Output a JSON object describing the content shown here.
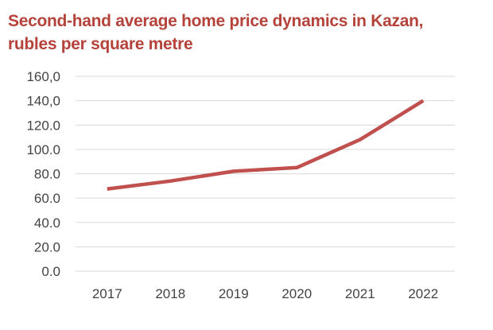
{
  "chart_data": {
    "type": "line",
    "title_line1": "Second-hand average home price dynamics in Kazan,",
    "title_line2": "rubles per square metre",
    "x": [
      "2017",
      "2018",
      "2019",
      "2020",
      "2021",
      "2022"
    ],
    "series": [
      {
        "values": [
          67.5,
          74.0,
          82.0,
          85.0,
          108.0,
          140.0
        ]
      }
    ],
    "ylim": [
      0,
      160
    ],
    "yticks": [
      "0.0",
      "20.0",
      "40.0",
      "60.0",
      "80.0",
      "100.0",
      "120.0",
      "140,0",
      "160,0"
    ],
    "grid": true,
    "line_color": "#c0504d",
    "grid_color": "#d9d9d9"
  }
}
